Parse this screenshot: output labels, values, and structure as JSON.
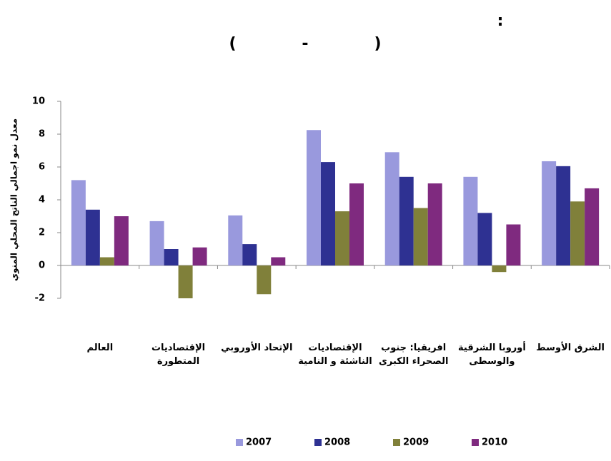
{
  "chart_data": {
    "type": "bar",
    "title": ":",
    "subtitle": "(            -            )",
    "y_label": "معدل نمو اجمالي الناتج المحلي المنوي",
    "categories": [
      "العالم",
      "الإقتصاديات المتطورة",
      "الإتحاد الأوروبي",
      "الإقتصاديات الناشئة و النامية",
      "افريقيا: جنوب الصحراء الكبرى",
      "أوروبا الشرقية والوسطى",
      "الشرق الأوسط"
    ],
    "series": [
      {
        "name": "2007",
        "color": "#9999dd",
        "values": [
          5.2,
          2.7,
          3.05,
          8.25,
          6.9,
          5.4,
          6.35
        ]
      },
      {
        "name": "2008",
        "color": "#2e3192",
        "values": [
          3.4,
          1.0,
          1.3,
          6.3,
          5.4,
          3.2,
          6.05
        ]
      },
      {
        "name": "2009",
        "color": "#80803a",
        "values": [
          0.5,
          -2.0,
          -1.75,
          3.3,
          3.5,
          -0.4,
          3.9
        ]
      },
      {
        "name": "2010",
        "color": "#7f2a7f",
        "values": [
          3.0,
          1.1,
          0.5,
          5.0,
          5.0,
          2.5,
          4.7
        ]
      }
    ],
    "ylim": [
      -2,
      10
    ],
    "yticks": [
      -2,
      0,
      2,
      4,
      6,
      8,
      10
    ],
    "grid": false,
    "legend": "bottom"
  }
}
